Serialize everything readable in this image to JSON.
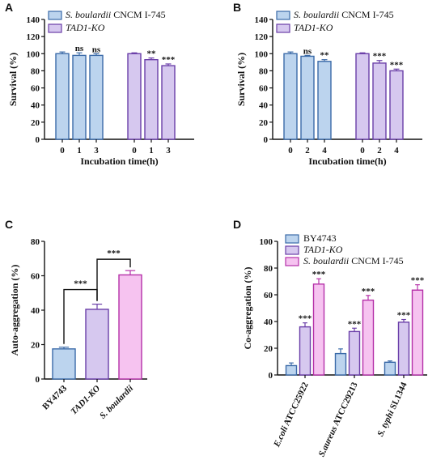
{
  "chart_data": [
    {
      "panel": "A",
      "type": "bar",
      "ylabel": "Survival (%)",
      "xlabel": "Incubation time(h)",
      "ylim": [
        0,
        140
      ],
      "yticks": [
        0,
        20,
        40,
        60,
        80,
        100,
        120,
        140
      ],
      "legend": [
        {
          "italic": "S. boulardii",
          "plain": " CNCM I-745"
        },
        {
          "italic": "TAD1-KO",
          "plain": ""
        }
      ],
      "groups": [
        {
          "name": "",
          "series": 0,
          "categories": [
            "0",
            "1",
            "3"
          ],
          "values": [
            100,
            98,
            98
          ],
          "errors": [
            2,
            3,
            2
          ],
          "sig": [
            "",
            "ns",
            "ns"
          ]
        },
        {
          "name": "",
          "series": 1,
          "categories": [
            "0",
            "1",
            "3"
          ],
          "values": [
            100,
            93,
            86
          ],
          "errors": [
            1,
            2,
            2
          ],
          "sig": [
            "",
            "**",
            "***"
          ]
        }
      ]
    },
    {
      "panel": "B",
      "type": "bar",
      "ylabel": "Survival (%)",
      "xlabel": "Incubation time(h)",
      "ylim": [
        0,
        140
      ],
      "yticks": [
        0,
        20,
        40,
        60,
        80,
        100,
        120,
        140
      ],
      "legend": [
        {
          "italic": "S. boulardii",
          "plain": " CNCM I-745"
        },
        {
          "italic": "TAD1-KO",
          "plain": ""
        }
      ],
      "groups": [
        {
          "name": "",
          "series": 0,
          "categories": [
            "0",
            "2",
            "4"
          ],
          "values": [
            100,
            97,
            91
          ],
          "errors": [
            2,
            1,
            2
          ],
          "sig": [
            "",
            "ns",
            "**"
          ]
        },
        {
          "name": "",
          "series": 1,
          "categories": [
            "0",
            "2",
            "4"
          ],
          "values": [
            100,
            89,
            80
          ],
          "errors": [
            1,
            3,
            2
          ],
          "sig": [
            "",
            "***",
            "***"
          ]
        }
      ]
    },
    {
      "panel": "C",
      "type": "bar",
      "ylabel": "Auto-aggregation (%)",
      "ylim": [
        0,
        80
      ],
      "yticks": [
        0,
        20,
        40,
        60,
        80
      ],
      "categories": [
        "BY4743",
        "TAD1-KO",
        "S. boulardii"
      ],
      "category_italic": [
        false,
        true,
        true
      ],
      "values": [
        17.5,
        40.5,
        60.5
      ],
      "errors": [
        1,
        3,
        2.5
      ],
      "brackets": [
        {
          "from": 0,
          "to": 1,
          "label": "***"
        },
        {
          "from": 1,
          "to": 2,
          "label": "***"
        }
      ]
    },
    {
      "panel": "D",
      "type": "bar",
      "ylabel": "Co-aggregation (%)",
      "ylim": [
        0,
        100
      ],
      "yticks": [
        0,
        20,
        40,
        60,
        80,
        100
      ],
      "categories": [
        {
          "italic": "E.coli",
          "plain": " ATCC25922"
        },
        {
          "italic": "S.aureus",
          "plain": " ATCC29213"
        },
        {
          "italic": "S. typhi",
          "plain": " SL1344"
        }
      ],
      "legend": [
        {
          "italic": "",
          "plain": "BY4743"
        },
        {
          "italic": "TAD1-KO",
          "plain": ""
        },
        {
          "italic": "S. boulardii",
          "plain": " CNCM I-745"
        }
      ],
      "series": [
        {
          "values": [
            7,
            16,
            9.5
          ],
          "errors": [
            2,
            3.5,
            1
          ],
          "sig": [
            "",
            "",
            ""
          ]
        },
        {
          "values": [
            36,
            32.5,
            39.5
          ],
          "errors": [
            3,
            2.5,
            2
          ],
          "sig": [
            "***",
            "***",
            "***"
          ]
        },
        {
          "values": [
            68,
            56,
            63.5
          ],
          "errors": [
            4,
            3.5,
            4
          ],
          "sig": [
            "***",
            "***",
            "***"
          ]
        }
      ]
    }
  ],
  "colors": {
    "blue_fill": "#bcd4ee",
    "blue_stroke": "#3a6aa8",
    "purple_fill": "#d6c8ef",
    "purple_stroke": "#6a3ea8",
    "pink_fill": "#f6c3f0",
    "pink_stroke": "#b530a8"
  }
}
